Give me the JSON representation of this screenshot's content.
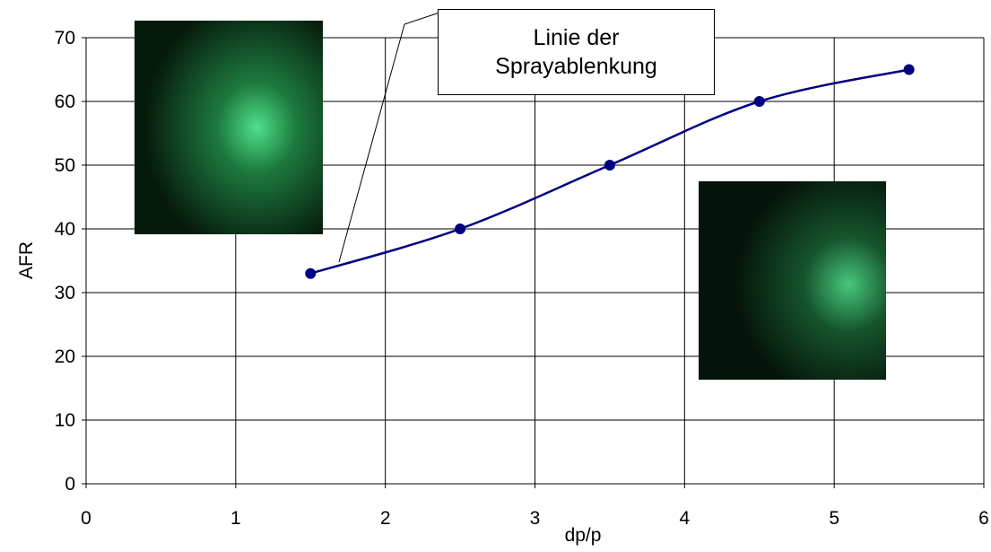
{
  "chart_data": {
    "type": "line",
    "x": [
      1.5,
      2.5,
      3.5,
      4.5,
      5.5
    ],
    "values": [
      33,
      40,
      50,
      60,
      65
    ],
    "color": "#000080",
    "xlim": [
      0,
      6
    ],
    "xticks": [
      0,
      1,
      2,
      3,
      4,
      5,
      6
    ],
    "ylim": [
      0,
      70
    ],
    "yticks": [
      0,
      10,
      20,
      30,
      40,
      50,
      60,
      70
    ],
    "grid": true,
    "xlabel": "dp/p",
    "ylabel": "AFR",
    "annotation": "Linie der Sprayablenkung"
  }
}
